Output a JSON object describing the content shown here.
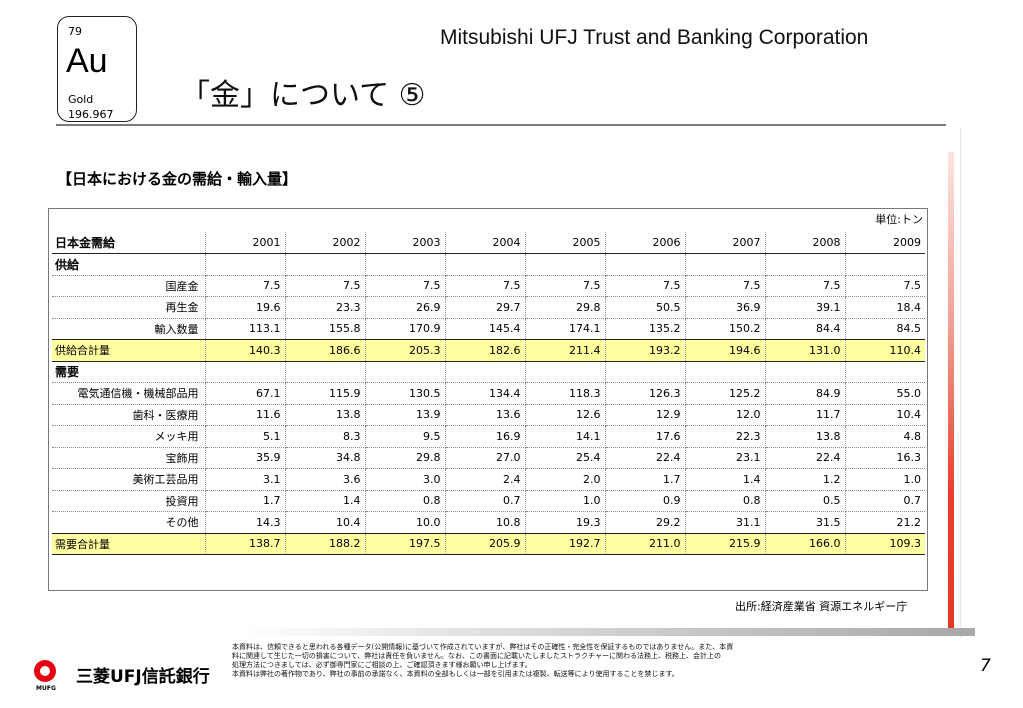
{
  "tile": {
    "number": "79",
    "symbol": "Au",
    "name": "Gold",
    "weight": "196.967"
  },
  "company": "Mitsubishi UFJ Trust and Banking Corporation",
  "title": "「金」について ⑤",
  "section_title": "【日本における金の需給・輸入量】",
  "unit": "単位:トン",
  "table": {
    "header": {
      "label": "日本金需給",
      "years": [
        "2001",
        "2002",
        "2003",
        "2004",
        "2005",
        "2006",
        "2007",
        "2008",
        "2009"
      ]
    },
    "supply_heading": "供給",
    "supply_rows": [
      {
        "label": "国産金",
        "values": [
          "7.5",
          "7.5",
          "7.5",
          "7.5",
          "7.5",
          "7.5",
          "7.5",
          "7.5",
          "7.5"
        ]
      },
      {
        "label": "再生金",
        "values": [
          "19.6",
          "23.3",
          "26.9",
          "29.7",
          "29.8",
          "50.5",
          "36.9",
          "39.1",
          "18.4"
        ]
      },
      {
        "label": "輸入数量",
        "values": [
          "113.1",
          "155.8",
          "170.9",
          "145.4",
          "174.1",
          "135.2",
          "150.2",
          "84.4",
          "84.5"
        ]
      }
    ],
    "supply_total": {
      "label": "供給合計量",
      "values": [
        "140.3",
        "186.6",
        "205.3",
        "182.6",
        "211.4",
        "193.2",
        "194.6",
        "131.0",
        "110.4"
      ]
    },
    "demand_heading": "需要",
    "demand_rows": [
      {
        "label": "電気通信機・機械部品用",
        "values": [
          "67.1",
          "115.9",
          "130.5",
          "134.4",
          "118.3",
          "126.3",
          "125.2",
          "84.9",
          "55.0"
        ]
      },
      {
        "label": "歯科・医療用",
        "values": [
          "11.6",
          "13.8",
          "13.9",
          "13.6",
          "12.6",
          "12.9",
          "12.0",
          "11.7",
          "10.4"
        ]
      },
      {
        "label": "メッキ用",
        "values": [
          "5.1",
          "8.3",
          "9.5",
          "16.9",
          "14.1",
          "17.6",
          "22.3",
          "13.8",
          "4.8"
        ]
      },
      {
        "label": "宝飾用",
        "values": [
          "35.9",
          "34.8",
          "29.8",
          "27.0",
          "25.4",
          "22.4",
          "23.1",
          "22.4",
          "16.3"
        ]
      },
      {
        "label": "美術工芸品用",
        "values": [
          "3.1",
          "3.6",
          "3.0",
          "2.4",
          "2.0",
          "1.7",
          "1.4",
          "1.2",
          "1.0"
        ]
      },
      {
        "label": "投資用",
        "values": [
          "1.7",
          "1.4",
          "0.8",
          "0.7",
          "1.0",
          "0.9",
          "0.8",
          "0.5",
          "0.7"
        ]
      },
      {
        "label": "その他",
        "values": [
          "14.3",
          "10.4",
          "10.0",
          "10.8",
          "19.3",
          "29.2",
          "31.1",
          "31.5",
          "21.2"
        ]
      }
    ],
    "demand_total": {
      "label": "需要合計量",
      "values": [
        "138.7",
        "188.2",
        "197.5",
        "205.9",
        "192.7",
        "211.0",
        "215.9",
        "166.0",
        "109.3"
      ]
    }
  },
  "source": "出所:経済産業省 資源エネルギー庁",
  "footer": {
    "bank_name": "三菱UFJ信託銀行",
    "mufg": "MUFG",
    "disclaimer": [
      "本資料は、信頼できると思われる各種データ(公開情報)に基づいて作成されていますが、弊社はその正確性・完全性を保証するものではありません。また、本資",
      "料に関連して生じた一切の損害について、弊社は責任を負いません。なお、この書面に記載いたしましたストラクチャーに関わる法務上、税務上、会計上の",
      "処理方法につきましては、必ず御専門家にご相談の上、ご確認頂きます様お願い申し上げます。",
      "本資料は弊社の著作物であり、弊社の事前の承諾なく、本資料の全部もしくは一部を引用または複製、転送等により使用することを禁じます。"
    ],
    "page_number": "7"
  },
  "colors": {
    "accent_red": "#e23a22",
    "total_row": "#ffffa0"
  }
}
